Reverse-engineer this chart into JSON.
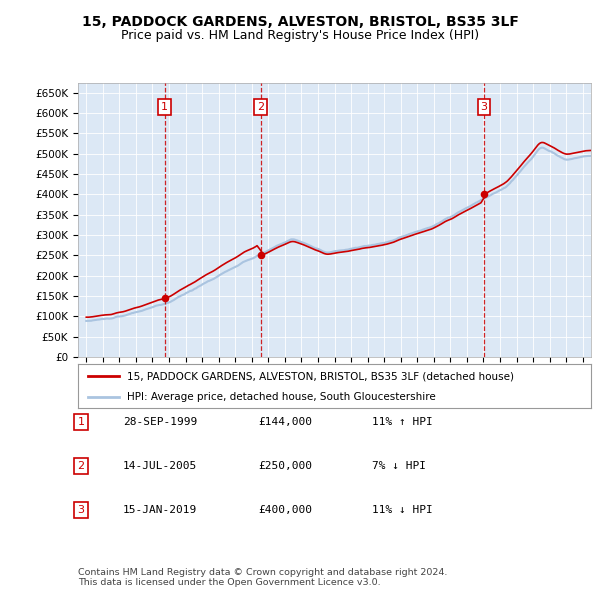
{
  "title": "15, PADDOCK GARDENS, ALVESTON, BRISTOL, BS35 3LF",
  "subtitle": "Price paid vs. HM Land Registry's House Price Index (HPI)",
  "title_fontsize": 10,
  "subtitle_fontsize": 9,
  "background_color": "#ffffff",
  "plot_bg_color": "#dce8f5",
  "ylim": [
    0,
    675000
  ],
  "yticks": [
    0,
    50000,
    100000,
    150000,
    200000,
    250000,
    300000,
    350000,
    400000,
    450000,
    500000,
    550000,
    600000,
    650000
  ],
  "ytick_labels": [
    "£0",
    "£50K",
    "£100K",
    "£150K",
    "£200K",
    "£250K",
    "£300K",
    "£350K",
    "£400K",
    "£450K",
    "£500K",
    "£550K",
    "£600K",
    "£650K"
  ],
  "sale_dates_num": [
    1999.74,
    2005.53,
    2019.04
  ],
  "sale_prices": [
    144000,
    250000,
    400000
  ],
  "sale_labels": [
    "1",
    "2",
    "3"
  ],
  "dashed_color": "#cc0000",
  "sale_marker_color": "#cc0000",
  "hpi_line_color": "#aac4e0",
  "price_line_color": "#cc0000",
  "legend_text_1": "15, PADDOCK GARDENS, ALVESTON, BRISTOL, BS35 3LF (detached house)",
  "legend_text_2": "HPI: Average price, detached house, South Gloucestershire",
  "table_rows": [
    [
      "1",
      "28-SEP-1999",
      "£144,000",
      "11% ↑ HPI"
    ],
    [
      "2",
      "14-JUL-2005",
      "£250,000",
      "7% ↓ HPI"
    ],
    [
      "3",
      "15-JAN-2019",
      "£400,000",
      "11% ↓ HPI"
    ]
  ],
  "footer_text": "Contains HM Land Registry data © Crown copyright and database right 2024.\nThis data is licensed under the Open Government Licence v3.0.",
  "xmin": 1994.5,
  "xmax": 2025.5
}
